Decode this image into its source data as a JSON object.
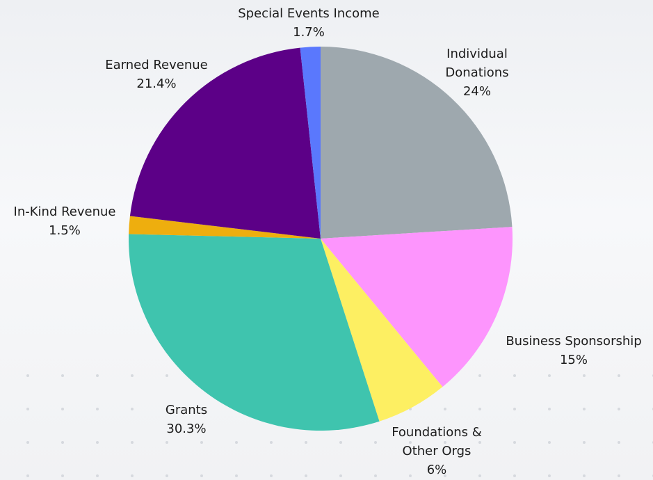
{
  "chart_data": {
    "type": "pie",
    "categories": [
      "Individual Donations",
      "Business Sponsorship",
      "Foundations & Other Orgs",
      "Grants",
      "In-Kind Revenue",
      "Earned Revenue",
      "Special Events Income"
    ],
    "values": [
      24,
      15,
      6,
      30.3,
      1.5,
      21.4,
      1.7
    ],
    "value_labels": [
      "24%",
      "15%",
      "6%",
      "30.3%",
      "1.5%",
      "21.4%",
      "1.7%"
    ],
    "colors": [
      "#9ea8ae",
      "#fd95fd",
      "#fdef62",
      "#3fc4ae",
      "#eeae0e",
      "#5c0087",
      "#5a78fd"
    ]
  }
}
